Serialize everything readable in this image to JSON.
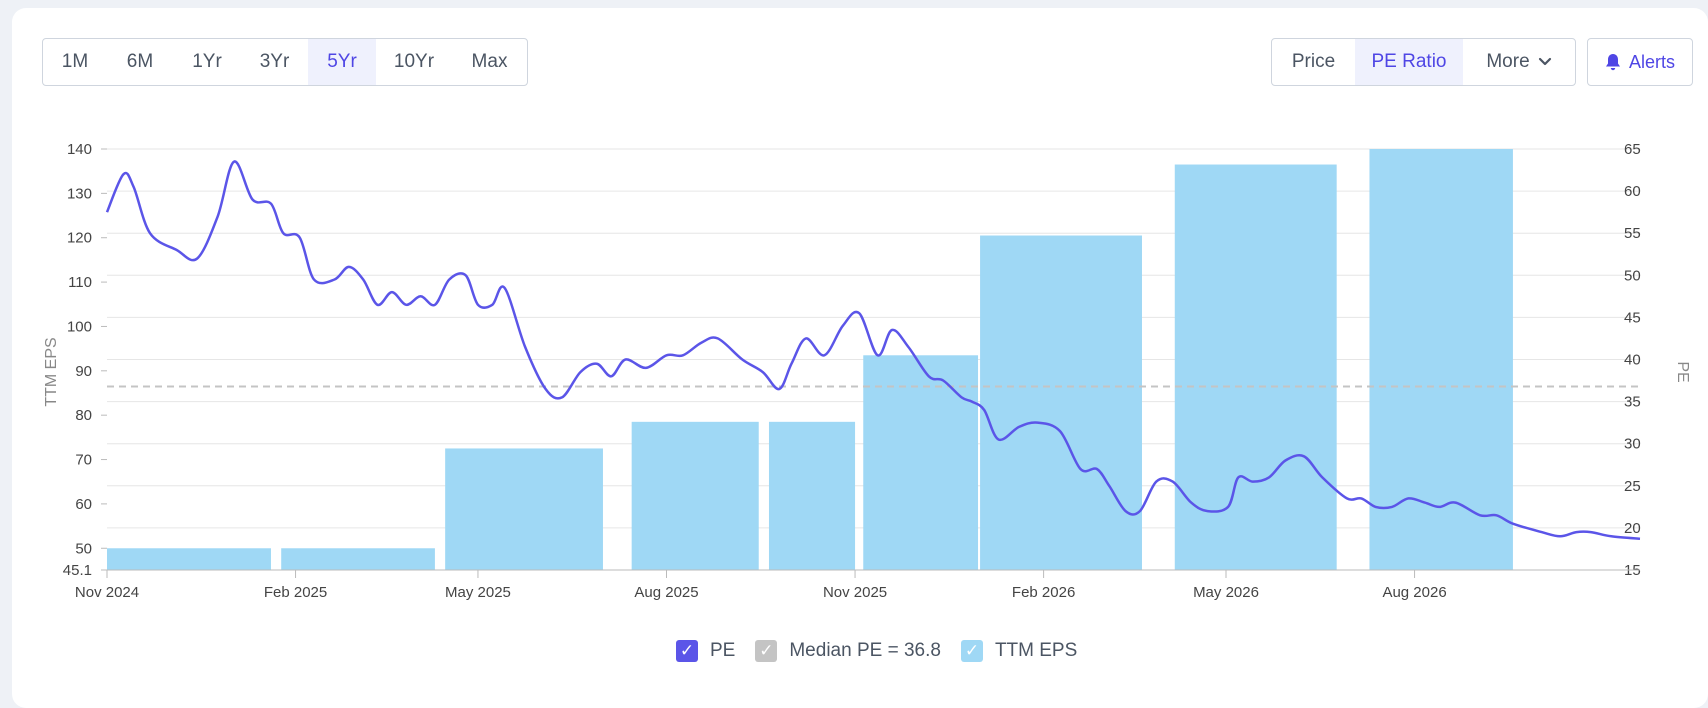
{
  "range_buttons": [
    "1M",
    "6M",
    "1Yr",
    "3Yr",
    "5Yr",
    "10Yr",
    "Max"
  ],
  "active_range": "5Yr",
  "metric_buttons": {
    "price": "Price",
    "pe_ratio": "PE Ratio",
    "more": "More"
  },
  "active_metric": "PE Ratio",
  "alerts_label": "Alerts",
  "colors": {
    "pe_line": "#5b55e8",
    "eps_bar": "#9fd8f5",
    "median_line": "#c4c4c4",
    "accent": "#4f46e5"
  },
  "legend": {
    "pe": "PE",
    "median": "Median PE = 36.8",
    "eps": "TTM EPS",
    "check": "✓"
  },
  "chart_data": {
    "type": "bar+line",
    "x_ticks": [
      "Nov 2024",
      "Feb 2025",
      "May 2025",
      "Aug 2025",
      "Nov 2025",
      "Feb 2026",
      "May 2026",
      "Aug 2026"
    ],
    "left_axis": {
      "label": "TTM EPS",
      "ticks": [
        "140",
        "130",
        "120",
        "110",
        "100",
        "90",
        "80",
        "70",
        "60",
        "50",
        "45.1"
      ],
      "range": [
        45.1,
        140
      ]
    },
    "right_axis": {
      "label": "PE",
      "ticks": [
        "65",
        "60",
        "55",
        "50",
        "45",
        "40",
        "35",
        "30",
        "25",
        "20",
        "15"
      ],
      "range": [
        15,
        65
      ]
    },
    "median_pe": 36.8,
    "eps_bars": [
      {
        "start": "2024-11-01",
        "end": "2025-01-20",
        "value": 50
      },
      {
        "start": "2025-01-25",
        "end": "2025-04-10",
        "value": 50
      },
      {
        "start": "2025-04-15",
        "end": "2025-07-01",
        "value": 72.5
      },
      {
        "start": "2025-07-15",
        "end": "2025-09-15",
        "value": 78.5
      },
      {
        "start": "2025-09-20",
        "end": "2025-11-01",
        "value": 78.5
      },
      {
        "start": "2025-11-05",
        "end": "2025-12-31",
        "value": 93.5
      },
      {
        "start": "2026-01-01",
        "end": "2026-03-21",
        "value": 120.5
      },
      {
        "start": "2026-04-06",
        "end": "2026-06-24",
        "value": 136.5
      },
      {
        "start": "2026-07-10",
        "end": "2026-09-18",
        "value": 140
      }
    ],
    "pe_series": {
      "name": "PE",
      "points": [
        [
          "2024-11-01",
          57.5
        ],
        [
          "2024-11-09",
          62.0
        ],
        [
          "2024-11-14",
          60.5
        ],
        [
          "2024-11-22",
          55.0
        ],
        [
          "2024-12-05",
          53.0
        ],
        [
          "2024-12-15",
          52.0
        ],
        [
          "2024-12-25",
          57.0
        ],
        [
          "2025-01-02",
          63.5
        ],
        [
          "2025-01-11",
          59.0
        ],
        [
          "2025-01-20",
          58.5
        ],
        [
          "2025-01-26",
          55.0
        ],
        [
          "2025-02-03",
          54.5
        ],
        [
          "2025-02-10",
          49.5
        ],
        [
          "2025-02-20",
          49.5
        ],
        [
          "2025-02-27",
          51.0
        ],
        [
          "2025-03-06",
          49.5
        ],
        [
          "2025-03-13",
          46.5
        ],
        [
          "2025-03-20",
          48.0
        ],
        [
          "2025-03-27",
          46.5
        ],
        [
          "2025-04-03",
          47.5
        ],
        [
          "2025-04-10",
          46.5
        ],
        [
          "2025-04-17",
          49.5
        ],
        [
          "2025-04-25",
          50.0
        ],
        [
          "2025-05-01",
          46.5
        ],
        [
          "2025-05-08",
          46.5
        ],
        [
          "2025-05-14",
          48.5
        ],
        [
          "2025-05-24",
          41.5
        ],
        [
          "2025-06-03",
          36.5
        ],
        [
          "2025-06-11",
          35.5
        ],
        [
          "2025-06-20",
          38.5
        ],
        [
          "2025-06-28",
          39.5
        ],
        [
          "2025-07-05",
          38.0
        ],
        [
          "2025-07-12",
          40.0
        ],
        [
          "2025-07-22",
          39.0
        ],
        [
          "2025-08-01",
          40.5
        ],
        [
          "2025-08-09",
          40.5
        ],
        [
          "2025-08-18",
          42.0
        ],
        [
          "2025-08-26",
          42.5
        ],
        [
          "2025-09-07",
          40.0
        ],
        [
          "2025-09-17",
          38.5
        ],
        [
          "2025-09-25",
          36.5
        ],
        [
          "2025-10-01",
          39.5
        ],
        [
          "2025-10-08",
          42.5
        ],
        [
          "2025-10-17",
          40.5
        ],
        [
          "2025-10-26",
          44.0
        ],
        [
          "2025-11-03",
          45.5
        ],
        [
          "2025-11-12",
          40.5
        ],
        [
          "2025-11-19",
          43.5
        ],
        [
          "2025-11-27",
          41.5
        ],
        [
          "2025-12-07",
          38.0
        ],
        [
          "2025-12-14",
          37.5
        ],
        [
          "2025-12-23",
          35.5
        ],
        [
          "2025-12-28",
          35.0
        ],
        [
          "2026-01-03",
          34.0
        ],
        [
          "2026-01-10",
          30.5
        ],
        [
          "2026-01-20",
          32.0
        ],
        [
          "2026-01-29",
          32.5
        ],
        [
          "2026-02-09",
          31.5
        ],
        [
          "2026-02-19",
          27.0
        ],
        [
          "2026-02-27",
          27.0
        ],
        [
          "2026-03-05",
          25.0
        ],
        [
          "2026-03-13",
          22.0
        ],
        [
          "2026-03-20",
          22.0
        ],
        [
          "2026-03-28",
          25.5
        ],
        [
          "2026-04-05",
          25.5
        ],
        [
          "2026-04-14",
          23.0
        ],
        [
          "2026-04-22",
          22.0
        ],
        [
          "2026-05-02",
          22.5
        ],
        [
          "2026-05-07",
          26.0
        ],
        [
          "2026-05-14",
          25.5
        ],
        [
          "2026-05-22",
          26.0
        ],
        [
          "2026-05-30",
          28.0
        ],
        [
          "2026-06-08",
          28.5
        ],
        [
          "2026-06-17",
          26.0
        ],
        [
          "2026-06-29",
          23.5
        ],
        [
          "2026-07-06",
          23.5
        ],
        [
          "2026-07-13",
          22.5
        ],
        [
          "2026-07-21",
          22.5
        ],
        [
          "2026-07-29",
          23.5
        ],
        [
          "2026-08-06",
          23.0
        ],
        [
          "2026-08-13",
          22.5
        ],
        [
          "2026-08-21",
          23.0
        ],
        [
          "2026-09-02",
          21.5
        ],
        [
          "2026-09-10",
          21.5
        ],
        [
          "2026-09-18",
          20.5
        ],
        [
          "2026-10-02",
          19.5
        ],
        [
          "2026-10-11",
          19.0
        ],
        [
          "2026-10-19",
          19.5
        ],
        [
          "2026-10-26",
          19.5
        ],
        [
          "2026-11-05",
          19.0
        ],
        [
          "2026-11-19",
          18.7
        ]
      ]
    },
    "grid": true
  }
}
